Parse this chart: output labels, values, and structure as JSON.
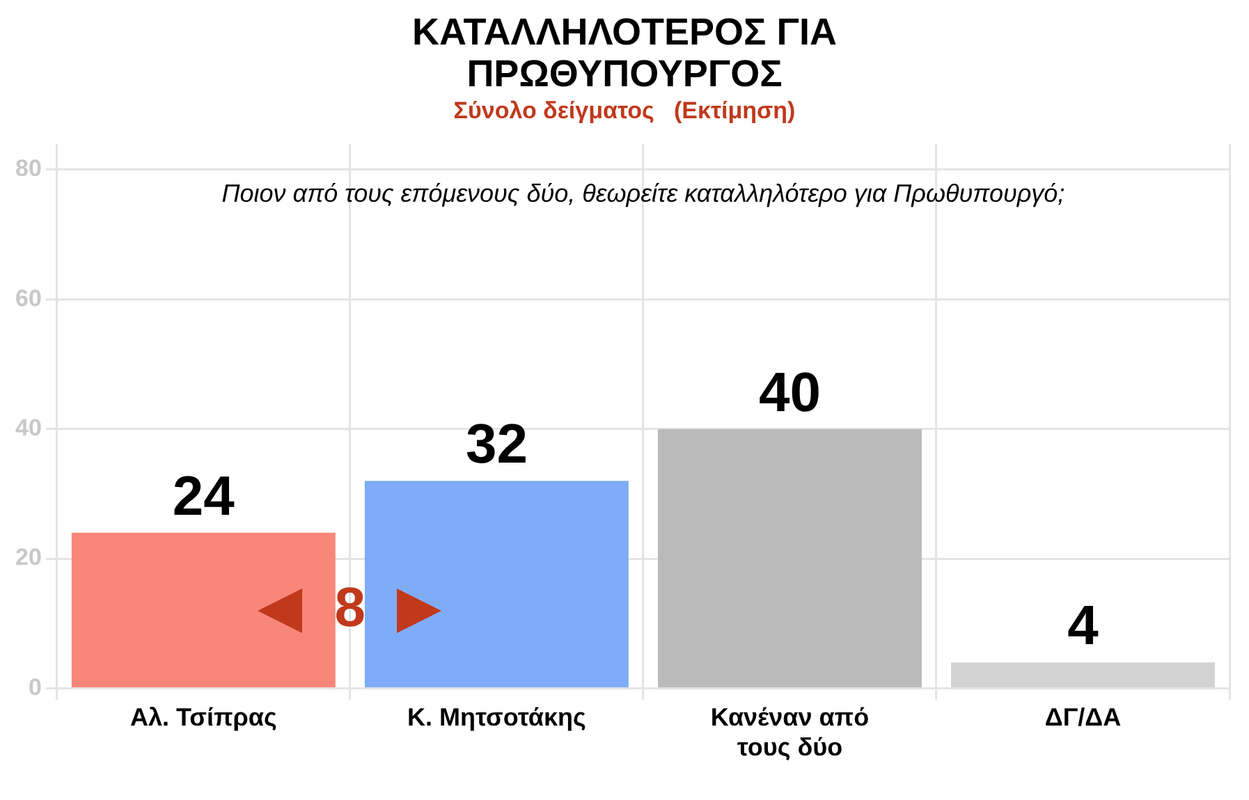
{
  "chart_data": {
    "type": "bar",
    "title": "ΚΑΤΑΛΛΗΛΟΤΕΡΟΣ ΓΙΑ ΠΡΩΘΥΠΟΥΡΓΟΣ",
    "subtitle": "Σύνολο δείγματος   (Εκτίμηση)",
    "categories": [
      "Αλ. Τσίπρας",
      "Κ. Μητσοτάκης",
      "Κανέναν από τους δύο",
      "ΔΓ/ΔΑ"
    ],
    "values": [
      24,
      32,
      40,
      4
    ],
    "colors": [
      "#f8877a",
      "#7facf8",
      "#bababa",
      "#d3d3d3"
    ],
    "ylim": [
      0,
      84
    ],
    "yticks": [
      0,
      20,
      40,
      60,
      80
    ],
    "grid": true,
    "data_labels": true,
    "annotations": [
      "Ποιον από τους επόμενους δύο, θεωρείτε καταλληλότερο για Πρωθυπουργό;",
      "8"
    ]
  }
}
